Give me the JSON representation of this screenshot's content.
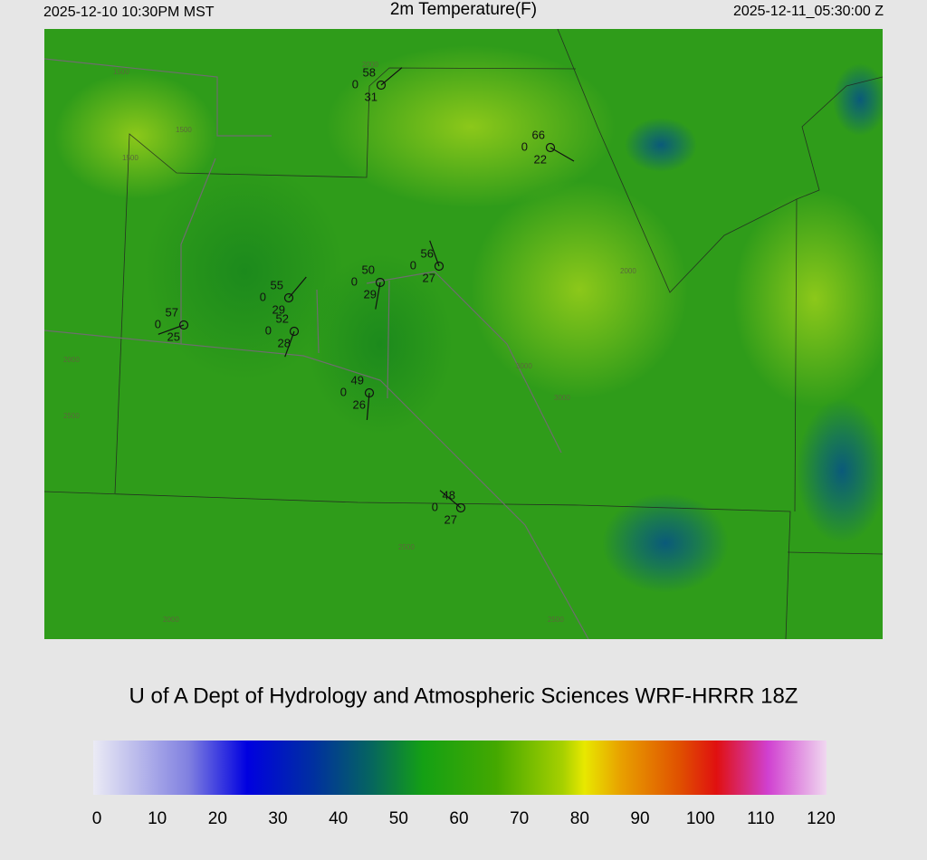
{
  "header": {
    "local_time": "2025-12-10 10:30PM MST",
    "title": "2m Temperature(F)",
    "valid_time": "2025-12-11_05:30:00 Z"
  },
  "stations": [
    {
      "temperature": "58",
      "pressure": "0",
      "dewpoint": "31"
    },
    {
      "temperature": "66",
      "pressure": "0",
      "dewpoint": "22"
    },
    {
      "temperature": "56",
      "pressure": "0",
      "dewpoint": "27"
    },
    {
      "temperature": "50",
      "pressure": "0",
      "dewpoint": "29"
    },
    {
      "temperature": "55",
      "pressure": "0",
      "dewpoint": "29"
    },
    {
      "temperature": "52",
      "pressure": "0",
      "dewpoint": "28"
    },
    {
      "temperature": "57",
      "pressure": "0",
      "dewpoint": "25"
    },
    {
      "temperature": "49",
      "pressure": "0",
      "dewpoint": "26"
    },
    {
      "temperature": "48",
      "pressure": "0",
      "dewpoint": "27"
    }
  ],
  "contour_labels": [
    "1500",
    "1500",
    "1500",
    "2000",
    "2000",
    "2000",
    "2500",
    "2500",
    "3000",
    "3000",
    "2000",
    "2500"
  ],
  "credit": "U of A Dept of Hydrology and Atmospheric Sciences WRF-HRRR 18Z",
  "colorbar": {
    "range": [
      0,
      120
    ],
    "ticks": [
      0,
      10,
      20,
      30,
      40,
      50,
      60,
      70,
      80,
      90,
      100,
      110,
      120
    ]
  }
}
